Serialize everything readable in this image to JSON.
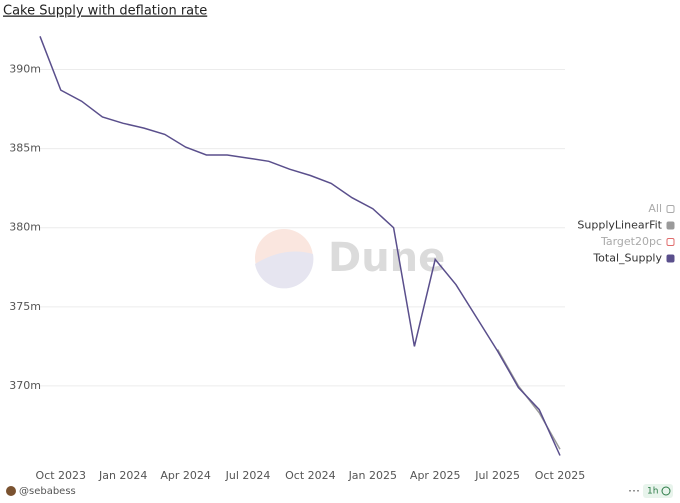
{
  "chart_data": {
    "type": "line",
    "title": "Cake Supply with deflation rate",
    "watermark": "Dune",
    "x": [
      "2023-09",
      "2023-10",
      "2023-11",
      "2023-12",
      "2024-01",
      "2024-02",
      "2024-03",
      "2024-04",
      "2024-05",
      "2024-06",
      "2024-07",
      "2024-08",
      "2024-09",
      "2024-10",
      "2024-11",
      "2024-12",
      "2025-01",
      "2025-02",
      "2025-03",
      "2025-04",
      "2025-05",
      "2025-06",
      "2025-07",
      "2025-08",
      "2025-09",
      "2025-10"
    ],
    "series": [
      {
        "name": "Total_Supply",
        "color": "#5a4f8c",
        "values": [
          392100000,
          388700000,
          388000000,
          387000000,
          386600000,
          386300000,
          385900000,
          385100000,
          384600000,
          384600000,
          384400000,
          384200000,
          383700000,
          383300000,
          382800000,
          381900000,
          381200000,
          380000000,
          372500000,
          378000000,
          376400000,
          374300000,
          372200000,
          369900000,
          368500000,
          365600000
        ]
      },
      {
        "name": "SupplyLinearFit",
        "color": "#9a9a9a",
        "values": [
          null,
          null,
          null,
          null,
          null,
          null,
          null,
          null,
          null,
          null,
          null,
          null,
          null,
          null,
          null,
          null,
          null,
          null,
          null,
          null,
          null,
          null,
          372300000,
          370000000,
          368300000,
          366000000
        ]
      }
    ],
    "legend": [
      {
        "name": "All",
        "color": "#aaaaaa",
        "shown": false
      },
      {
        "name": "SupplyLinearFit",
        "color": "#9a9a9a",
        "shown": true
      },
      {
        "name": "Target20pc",
        "color": "#e06c6c",
        "shown": false
      },
      {
        "name": "Total_Supply",
        "color": "#5a4f8c",
        "shown": true
      }
    ],
    "xlim": [
      "2023-09",
      "2025-10"
    ],
    "xticks": [
      {
        "value": "2023-10",
        "label": "Oct 2023"
      },
      {
        "value": "2024-01",
        "label": "Jan 2024"
      },
      {
        "value": "2024-04",
        "label": "Apr 2024"
      },
      {
        "value": "2024-07",
        "label": "Jul 2024"
      },
      {
        "value": "2024-10",
        "label": "Oct 2024"
      },
      {
        "value": "2025-01",
        "label": "Jan 2025"
      },
      {
        "value": "2025-04",
        "label": "Apr 2025"
      },
      {
        "value": "2025-07",
        "label": "Jul 2025"
      },
      {
        "value": "2025-10",
        "label": "Oct 2025"
      }
    ],
    "ylim": [
      365000000,
      392500000
    ],
    "yticks": [
      {
        "value": 370000000,
        "label": "370m"
      },
      {
        "value": 375000000,
        "label": "375m"
      },
      {
        "value": 380000000,
        "label": "380m"
      },
      {
        "value": 385000000,
        "label": "385m"
      },
      {
        "value": 390000000,
        "label": "390m"
      }
    ],
    "grid": true,
    "author": "@sebabess",
    "age": "1h"
  }
}
